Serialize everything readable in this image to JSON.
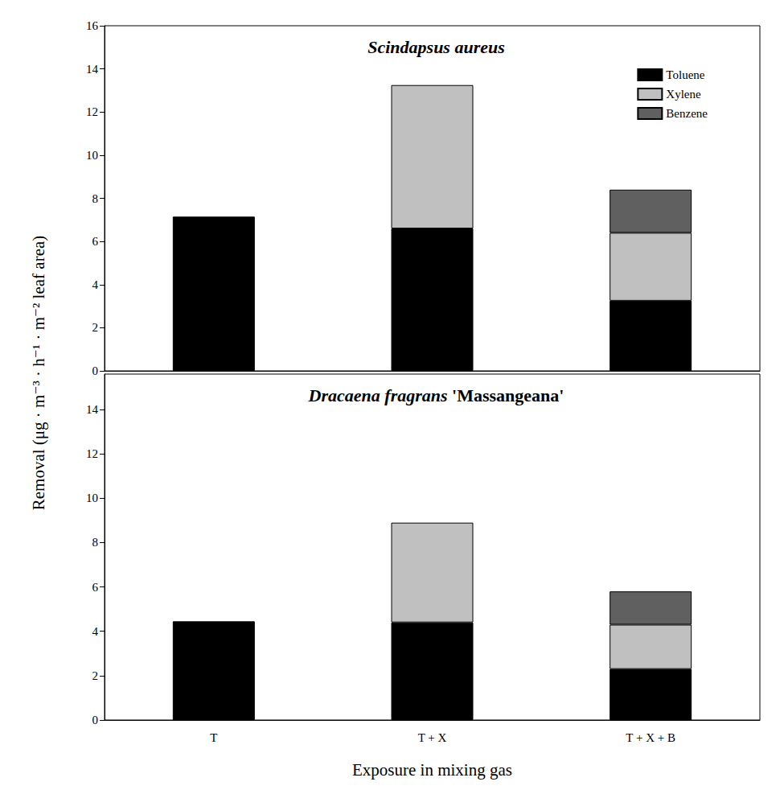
{
  "chart_data": [
    {
      "type": "bar",
      "title": "Scindapsus aureus",
      "y_label": "Removal (μg · m⁻³ · h⁻¹ · m⁻² leaf area)",
      "categories": [
        "T",
        "T + X",
        "T + X + B"
      ],
      "series": [
        {
          "name": "Toluene",
          "color": "#000000",
          "values": [
            7.15,
            6.6,
            3.25
          ]
        },
        {
          "name": "Xylene",
          "color": "#c0c0c0",
          "values": [
            null,
            6.65,
            3.15
          ]
        },
        {
          "name": "Benzene",
          "color": "#606060",
          "values": [
            null,
            null,
            2.0
          ]
        }
      ],
      "ylim": [
        0,
        16
      ],
      "yticks": [
        0,
        2,
        4,
        6,
        8,
        10,
        12,
        14,
        16
      ],
      "stacked": true,
      "legend": "upper right",
      "tick_labels": "y",
      "grid": false
    },
    {
      "type": "bar",
      "title": "Dracaena fragrans 'Massangeana'",
      "x_label": "Exposure in mixing gas",
      "categories": [
        "T",
        "T + X",
        "T + X + B"
      ],
      "series": [
        {
          "name": "Toluene",
          "color": "#000000",
          "values": [
            4.45,
            4.4,
            2.3
          ]
        },
        {
          "name": "Xylene",
          "color": "#c0c0c0",
          "values": [
            null,
            4.5,
            2.0
          ]
        },
        {
          "name": "Benzene",
          "color": "#606060",
          "values": [
            null,
            null,
            1.5
          ]
        }
      ],
      "ylim": [
        0,
        15.6
      ],
      "yticks": [
        0,
        2,
        4,
        6,
        8,
        10,
        12,
        14
      ],
      "stacked": true,
      "grid": false
    }
  ]
}
